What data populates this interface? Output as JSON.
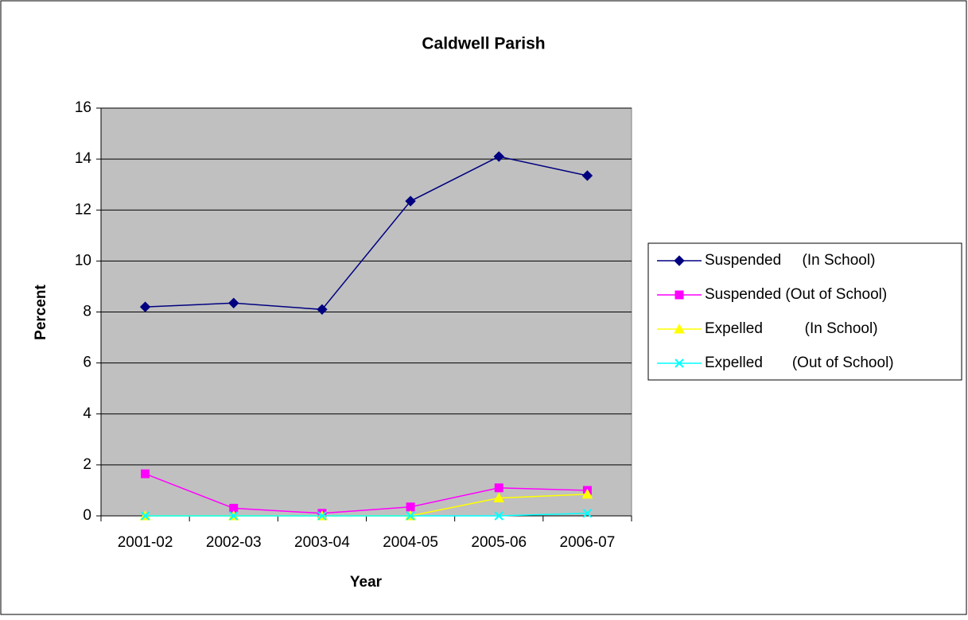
{
  "chart_data": {
    "type": "line",
    "title": "Caldwell Parish",
    "x_label": "Year",
    "y_label": "Percent",
    "categories": [
      "2001-02",
      "2002-03",
      "2003-04",
      "2004-05",
      "2005-06",
      "2006-07"
    ],
    "series": [
      {
        "name": "Suspended     (In School)",
        "color": "#000080",
        "marker": "diamond",
        "values": [
          8.2,
          8.35,
          8.1,
          12.35,
          14.1,
          13.35
        ]
      },
      {
        "name": "Suspended (Out of School)",
        "color": "#ff00ff",
        "marker": "square",
        "values": [
          1.65,
          0.3,
          0.1,
          0.35,
          1.1,
          1.0
        ]
      },
      {
        "name": "Expelled          (In School)",
        "color": "#ffff00",
        "marker": "triangle",
        "values": [
          0,
          0,
          0,
          0,
          0.7,
          0.85
        ]
      },
      {
        "name": "Expelled       (Out of School)",
        "color": "#00ffff",
        "marker": "x",
        "values": [
          0,
          0,
          0,
          0,
          0,
          0.1
        ]
      }
    ],
    "ylim": [
      0,
      16
    ],
    "yticks": [
      0,
      2,
      4,
      6,
      8,
      10,
      12,
      14,
      16
    ],
    "grid": true,
    "legend": "right"
  }
}
